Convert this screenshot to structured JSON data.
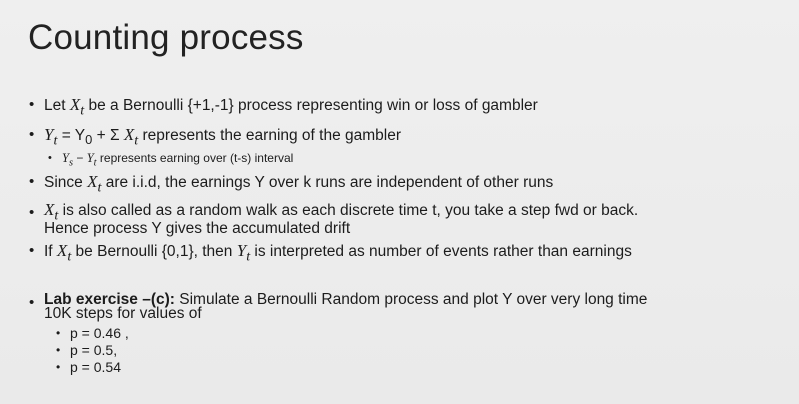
{
  "slide": {
    "title": "Counting process",
    "b1": {
      "pre": "Let ",
      "var": "X",
      "sub": "t",
      "post": " be a Bernoulli {+1,-1} process representing win or loss of gambler"
    },
    "b2": {
      "var_y": "Y",
      "sub_t": "t",
      "eq": " = Y",
      "sub_0": "0",
      "plus": " + Σ ",
      "var_x": "X",
      "sub_t2": "t",
      "post": " represents the earning of the gambler"
    },
    "b2sub": {
      "var_ys": "Y",
      "sub_s": "s",
      "minus": " − ",
      "var_yt": "Y",
      "sub_t": "t",
      "post": " represents earning over (t-s)  interval"
    },
    "b3": {
      "pre": "Since ",
      "var": "X",
      "sub": "t",
      "post": " are i.i.d, the earnings Y over k runs are independent of other runs"
    },
    "b4": {
      "var": "X",
      "sub": "t",
      "line1": " is also called as a random walk as each discrete time t, you take a step fwd or back.",
      "line2": "Hence process Y gives the accumulated drift"
    },
    "b5": {
      "pre": "If ",
      "var_x": "X",
      "sub_x": "t",
      "mid": " be Bernoulli {0,1}, then ",
      "var_y": "Y",
      "sub_y": "t",
      "post": " is interpreted as number of events rather than earnings"
    },
    "lab": {
      "label": "Lab exercise –(c):",
      "line1": " Simulate a Bernoulli Random process and plot Y over very long time",
      "line2": "10K steps for values of",
      "p_values": [
        "p = 0.46 ,",
        "p = 0.5,",
        "p = 0.54"
      ]
    }
  }
}
